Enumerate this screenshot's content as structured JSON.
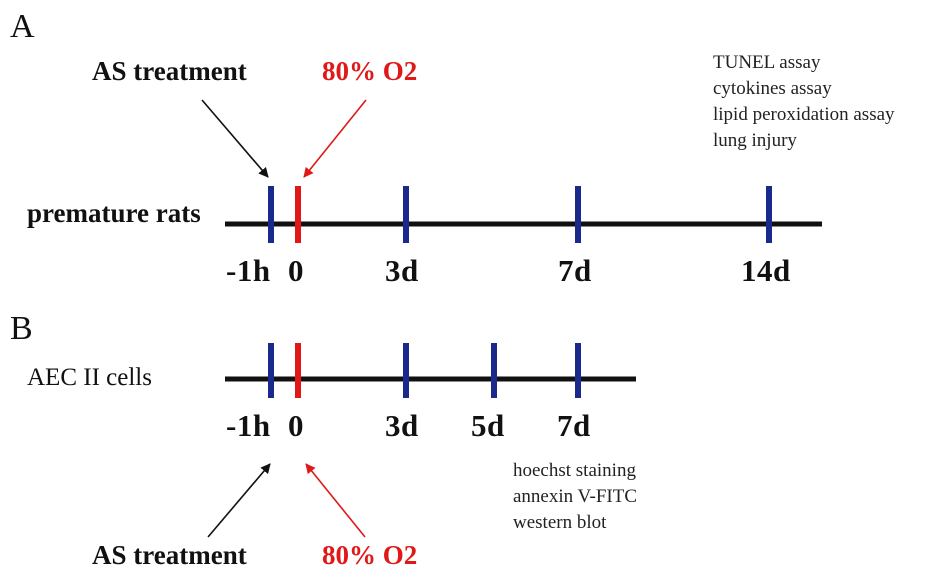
{
  "panel_a": {
    "letter": "A",
    "row_label": "premature rats",
    "treatment_label": "AS treatment",
    "oxygen_label": "80% O2",
    "ticks": [
      "-1h",
      "0",
      "3d",
      "7d",
      "14d"
    ],
    "assays": [
      "TUNEL assay",
      "cytokines assay",
      "lipid peroxidation assay",
      "lung injury"
    ]
  },
  "panel_b": {
    "letter": "B",
    "row_label": "AEC II cells",
    "treatment_label": "AS treatment",
    "oxygen_label": "80% O2",
    "ticks": [
      "-1h",
      "0",
      "3d",
      "5d",
      "7d"
    ],
    "assays": [
      "hoechst staining",
      "annexin V-FITC",
      "western blot"
    ]
  },
  "colors": {
    "timeline": "#111111",
    "time_marker": "#1a2a8c",
    "oxygen_marker": "#e01818",
    "arrow_treatment": "#111111",
    "arrow_oxygen": "#e01818"
  }
}
